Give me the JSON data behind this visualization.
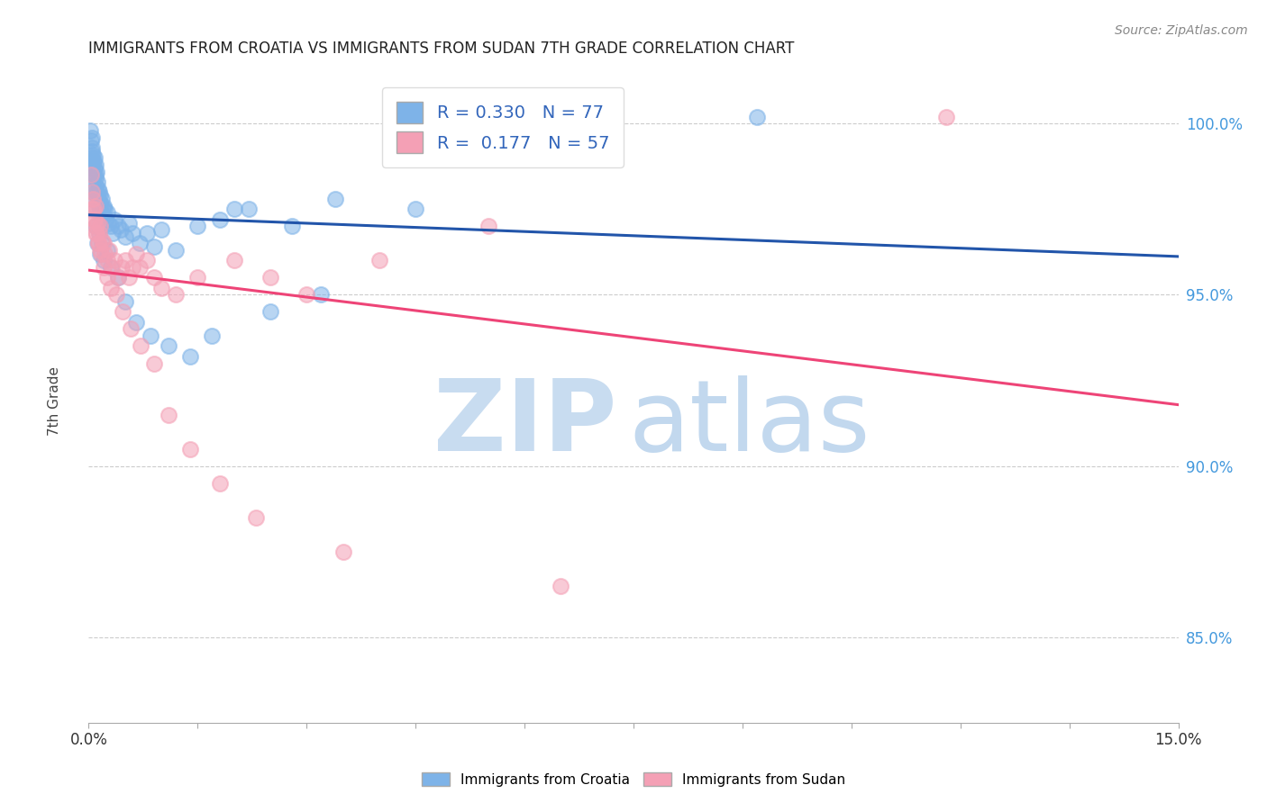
{
  "title": "IMMIGRANTS FROM CROATIA VS IMMIGRANTS FROM SUDAN 7TH GRADE CORRELATION CHART",
  "source": "Source: ZipAtlas.com",
  "ylabel": "7th Grade",
  "xlim": [
    0.0,
    15.0
  ],
  "ylim": [
    82.5,
    101.5
  ],
  "yticks": [
    85.0,
    90.0,
    95.0,
    100.0
  ],
  "ytick_labels": [
    "85.0%",
    "90.0%",
    "95.0%",
    "100.0%"
  ],
  "croatia_R": 0.33,
  "croatia_N": 77,
  "sudan_R": 0.177,
  "sudan_N": 57,
  "croatia_color": "#7EB3E8",
  "sudan_color": "#F4A0B5",
  "trendline_croatia_color": "#2255AA",
  "trendline_sudan_color": "#EE4477",
  "watermark_zip_color": "#C8DCF0",
  "watermark_atlas_color": "#A8C8E8",
  "legend_label_croatia": "Immigrants from Croatia",
  "legend_label_sudan": "Immigrants from Sudan",
  "croatia_x": [
    0.02,
    0.03,
    0.04,
    0.04,
    0.05,
    0.05,
    0.06,
    0.06,
    0.07,
    0.07,
    0.08,
    0.08,
    0.09,
    0.09,
    0.1,
    0.1,
    0.11,
    0.11,
    0.12,
    0.12,
    0.13,
    0.13,
    0.14,
    0.14,
    0.15,
    0.15,
    0.16,
    0.17,
    0.18,
    0.19,
    0.2,
    0.21,
    0.22,
    0.23,
    0.25,
    0.27,
    0.3,
    0.33,
    0.36,
    0.4,
    0.44,
    0.5,
    0.55,
    0.6,
    0.7,
    0.8,
    0.9,
    1.0,
    1.2,
    1.5,
    1.8,
    2.2,
    2.8,
    3.4,
    4.5,
    0.04,
    0.06,
    0.08,
    0.1,
    0.12,
    0.14,
    0.16,
    0.18,
    0.2,
    0.25,
    0.3,
    0.4,
    0.5,
    0.65,
    0.85,
    1.1,
    1.4,
    1.7,
    2.5,
    3.2,
    9.2,
    2.0
  ],
  "croatia_y": [
    99.8,
    99.5,
    99.2,
    99.6,
    99.0,
    99.3,
    98.8,
    99.1,
    98.5,
    98.9,
    98.7,
    99.0,
    98.4,
    98.8,
    98.5,
    98.2,
    98.6,
    98.0,
    98.3,
    97.9,
    98.1,
    97.8,
    98.0,
    97.6,
    97.9,
    97.5,
    97.7,
    97.4,
    97.8,
    97.5,
    97.6,
    97.3,
    97.5,
    97.2,
    97.4,
    97.1,
    97.0,
    96.8,
    97.2,
    97.0,
    96.9,
    96.7,
    97.1,
    96.8,
    96.5,
    96.8,
    96.4,
    96.9,
    96.3,
    97.0,
    97.2,
    97.5,
    97.0,
    97.8,
    97.5,
    98.0,
    97.8,
    97.5,
    97.0,
    96.5,
    96.8,
    96.2,
    96.5,
    96.0,
    96.3,
    95.8,
    95.5,
    94.8,
    94.2,
    93.8,
    93.5,
    93.2,
    93.8,
    94.5,
    95.0,
    100.2,
    97.5
  ],
  "sudan_x": [
    0.03,
    0.05,
    0.06,
    0.07,
    0.08,
    0.09,
    0.1,
    0.11,
    0.12,
    0.13,
    0.14,
    0.15,
    0.16,
    0.18,
    0.2,
    0.22,
    0.25,
    0.28,
    0.32,
    0.36,
    0.4,
    0.45,
    0.5,
    0.55,
    0.6,
    0.65,
    0.7,
    0.8,
    0.9,
    1.0,
    1.2,
    1.5,
    2.0,
    2.5,
    3.0,
    4.0,
    5.5,
    0.04,
    0.07,
    0.1,
    0.13,
    0.17,
    0.21,
    0.26,
    0.31,
    0.38,
    0.46,
    0.58,
    0.72,
    0.9,
    1.1,
    1.4,
    1.8,
    2.3,
    3.5,
    11.8,
    6.5
  ],
  "sudan_y": [
    98.5,
    98.0,
    97.8,
    97.5,
    97.2,
    97.6,
    97.0,
    96.8,
    97.1,
    96.5,
    96.8,
    97.0,
    96.3,
    96.6,
    96.5,
    96.2,
    96.0,
    96.3,
    95.8,
    96.0,
    95.5,
    95.8,
    96.0,
    95.5,
    95.8,
    96.2,
    95.8,
    96.0,
    95.5,
    95.2,
    95.0,
    95.5,
    96.0,
    95.5,
    95.0,
    96.0,
    97.0,
    97.5,
    97.2,
    96.8,
    96.5,
    96.2,
    95.8,
    95.5,
    95.2,
    95.0,
    94.5,
    94.0,
    93.5,
    93.0,
    91.5,
    90.5,
    89.5,
    88.5,
    87.5,
    100.2,
    86.5
  ]
}
